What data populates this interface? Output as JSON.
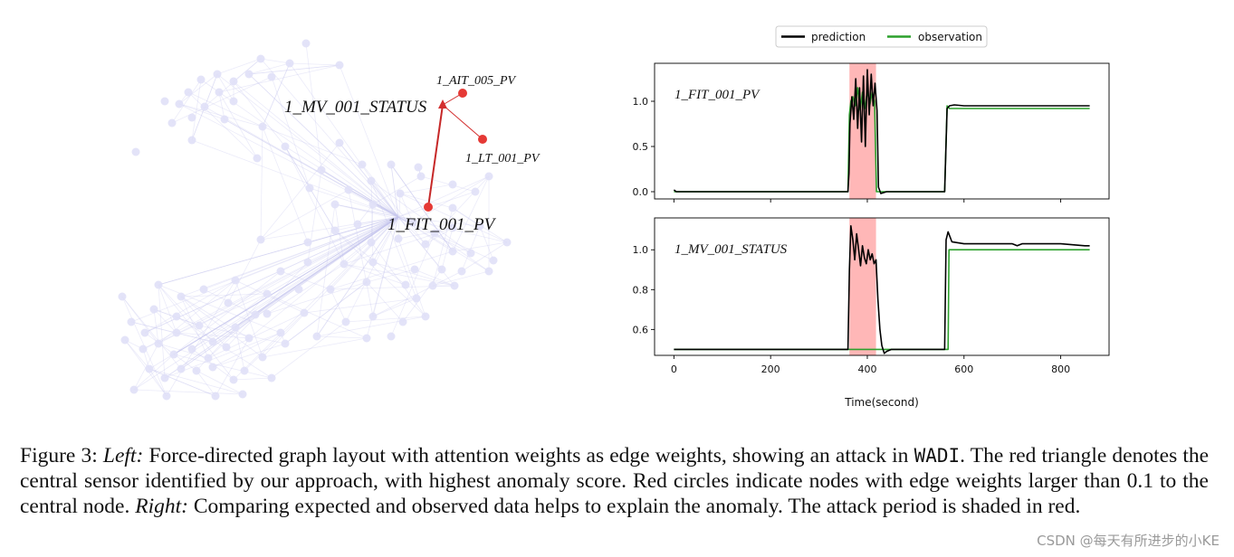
{
  "graph": {
    "central_node": "1_MV_001_STATUS",
    "red_nodes": [
      "1_AIT_005_PV",
      "1_LT_001_PV",
      "1_FIT_001_PV"
    ]
  },
  "chart_data": [
    {
      "type": "line",
      "legend": [
        "prediction",
        "observation"
      ],
      "legend_position": "top",
      "title": "1_FIT_001_PV",
      "xlim": [
        -40,
        900
      ],
      "ylim": [
        -0.08,
        1.42
      ],
      "yticks": [
        0.0,
        0.5,
        1.0
      ],
      "ytick_labels": [
        "0.0",
        "0.5",
        "1.0"
      ],
      "attack_period": [
        363,
        418
      ],
      "series": [
        {
          "name": "prediction",
          "color": "#000000",
          "x": [
            0,
            5,
            10,
            360,
            362,
            364,
            368,
            372,
            376,
            380,
            384,
            388,
            392,
            396,
            400,
            404,
            408,
            412,
            416,
            420,
            423,
            428,
            440,
            450,
            560,
            565,
            570,
            580,
            600,
            650,
            700,
            750,
            800,
            860
          ],
          "y": [
            0.02,
            0.0,
            0.0,
            0.0,
            0.2,
            0.75,
            1.05,
            0.8,
            1.25,
            0.7,
            1.15,
            0.55,
            1.28,
            0.5,
            1.35,
            0.85,
            1.3,
            0.95,
            1.2,
            0.9,
            0.05,
            -0.02,
            0.0,
            0.0,
            0.0,
            0.92,
            0.95,
            0.96,
            0.95,
            0.95,
            0.95,
            0.95,
            0.95,
            0.95
          ]
        },
        {
          "name": "observation",
          "color": "#2ca02c",
          "x": [
            0,
            10,
            360,
            363,
            366,
            370,
            375,
            380,
            385,
            390,
            395,
            400,
            405,
            410,
            415,
            419,
            425,
            560,
            565,
            570,
            600,
            650,
            700,
            750,
            800,
            860
          ],
          "y": [
            0.0,
            0.0,
            0.0,
            0.85,
            1.0,
            1.05,
            0.95,
            1.15,
            0.9,
            1.1,
            0.92,
            1.12,
            0.95,
            1.1,
            1.0,
            0.0,
            0.0,
            0.0,
            0.95,
            0.92,
            0.92,
            0.92,
            0.92,
            0.92,
            0.92,
            0.92
          ]
        }
      ]
    },
    {
      "type": "line",
      "title": "1_MV_001_STATUS",
      "xlabel": "Time(second)",
      "xlim": [
        -40,
        900
      ],
      "ylim": [
        0.47,
        1.16
      ],
      "xticks": [
        0,
        200,
        400,
        600,
        800
      ],
      "xtick_labels": [
        "0",
        "200",
        "400",
        "600",
        "800"
      ],
      "yticks": [
        0.6,
        0.8,
        1.0
      ],
      "ytick_labels": [
        "0.6",
        "0.8",
        "1.0"
      ],
      "attack_period": [
        363,
        418
      ],
      "series": [
        {
          "name": "prediction",
          "color": "#000000",
          "x": [
            0,
            360,
            363,
            366,
            370,
            374,
            378,
            382,
            386,
            390,
            394,
            398,
            402,
            406,
            410,
            414,
            418,
            422,
            426,
            430,
            435,
            440,
            450,
            560,
            563,
            567,
            575,
            600,
            650,
            700,
            710,
            720,
            760,
            800,
            850,
            860
          ],
          "y": [
            0.5,
            0.5,
            0.9,
            1.12,
            1.05,
            0.95,
            1.08,
            1.0,
            0.92,
            1.02,
            0.96,
            0.93,
            1.0,
            0.95,
            0.98,
            0.93,
            0.95,
            0.75,
            0.6,
            0.52,
            0.48,
            0.49,
            0.5,
            0.5,
            1.05,
            1.09,
            1.04,
            1.03,
            1.03,
            1.03,
            1.02,
            1.03,
            1.03,
            1.03,
            1.02,
            1.02
          ]
        },
        {
          "name": "observation",
          "color": "#2ca02c",
          "x": [
            0,
            567,
            569,
            860
          ],
          "y": [
            0.5,
            0.5,
            1.0,
            1.0
          ]
        }
      ]
    }
  ],
  "caption": {
    "figure_label": "Figure 3:",
    "left_label": "Left:",
    "text_1": "Force-directed graph layout with attention weights as edge weights, showing an attack in",
    "dataset": "WADI",
    "text_2": ". The red triangle denotes the central sensor identified by our approach, with highest anomaly score. Red circles indicate nodes with edge weights larger than 0.1 to the central node.",
    "right_label": "Right:",
    "text_3": "Comparing expected and observed data helps to explain the anomaly. The attack period is shaded in red."
  },
  "watermark": "CSDN @每天有所进步的小KE"
}
